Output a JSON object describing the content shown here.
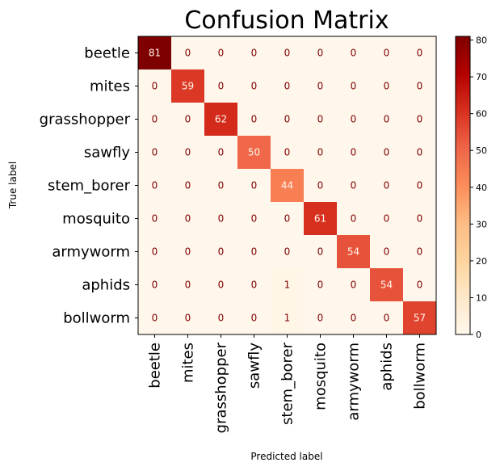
{
  "chart_data": {
    "type": "heatmap",
    "title": "Confusion Matrix",
    "xlabel": "Predicted label",
    "ylabel": "True label",
    "labels": [
      "beetle",
      "mites",
      "grasshopper",
      "sawfly",
      "stem_borer",
      "mosquito",
      "armyworm",
      "aphids",
      "bollworm"
    ],
    "matrix": [
      [
        81,
        0,
        0,
        0,
        0,
        0,
        0,
        0,
        0
      ],
      [
        0,
        59,
        0,
        0,
        0,
        0,
        0,
        0,
        0
      ],
      [
        0,
        0,
        62,
        0,
        0,
        0,
        0,
        0,
        0
      ],
      [
        0,
        0,
        0,
        50,
        0,
        0,
        0,
        0,
        0
      ],
      [
        0,
        0,
        0,
        0,
        44,
        0,
        0,
        0,
        0
      ],
      [
        0,
        0,
        0,
        0,
        0,
        61,
        0,
        0,
        0
      ],
      [
        0,
        0,
        0,
        0,
        0,
        0,
        54,
        0,
        0
      ],
      [
        0,
        0,
        0,
        0,
        1,
        0,
        0,
        54,
        0
      ],
      [
        0,
        0,
        0,
        0,
        1,
        0,
        0,
        0,
        57
      ]
    ],
    "colormap": "OrRd",
    "colorbar": {
      "range": [
        0,
        81
      ],
      "ticks": [
        "0",
        "10",
        "20",
        "30",
        "40",
        "50",
        "60",
        "70",
        "80"
      ]
    },
    "colors": {
      "low": "#fff7ec",
      "high": "#7f0000",
      "text_dark": "#7f0000",
      "text_light": "#fff7ec"
    }
  }
}
